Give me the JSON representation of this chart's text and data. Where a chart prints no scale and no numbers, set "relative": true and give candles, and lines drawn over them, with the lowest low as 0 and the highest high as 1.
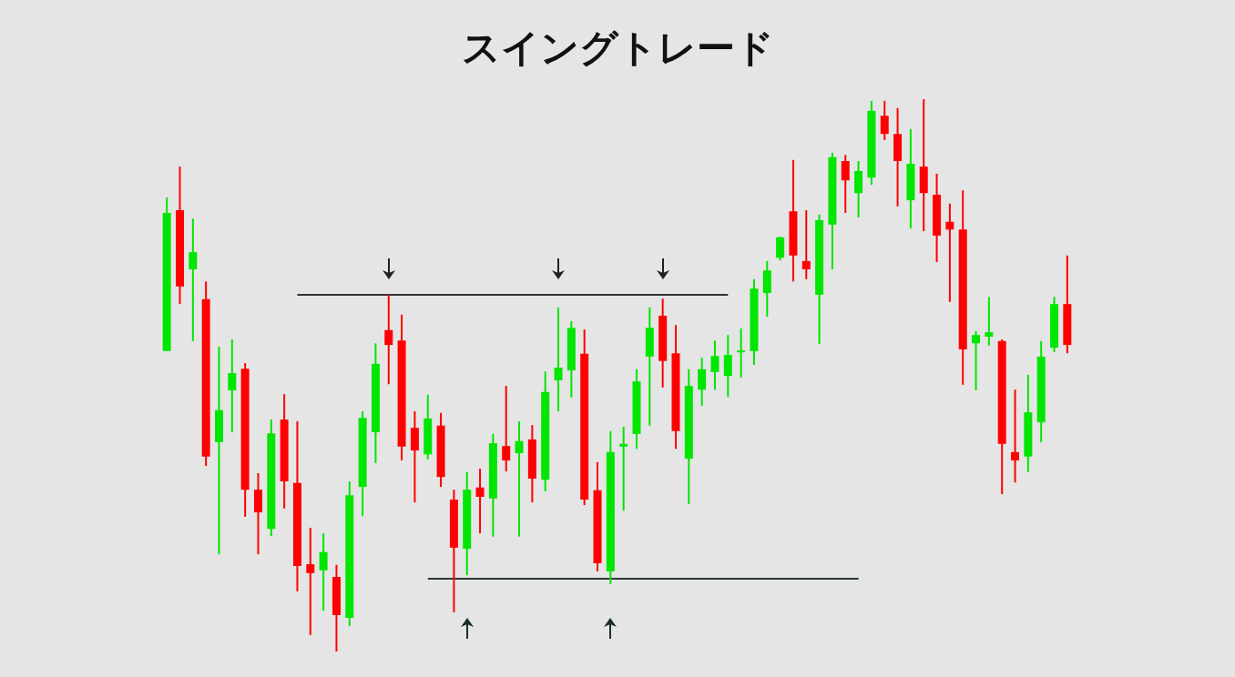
{
  "chart_data": {
    "type": "candlestick",
    "title": "スイングトレード",
    "relative": true,
    "categories": [
      null,
      null,
      null,
      null,
      null,
      null,
      null,
      null,
      null,
      null,
      null,
      null,
      null,
      null,
      null,
      null,
      null,
      null,
      null,
      null,
      null,
      null,
      null,
      null,
      null,
      null,
      null,
      null,
      null,
      null,
      null,
      null,
      null,
      null,
      null,
      null,
      null,
      null,
      null,
      null,
      null,
      null,
      null,
      null,
      null,
      null,
      null,
      null,
      null,
      null,
      null,
      null,
      null,
      null,
      null,
      null,
      null,
      null,
      null,
      null,
      null,
      null,
      null,
      null,
      null,
      null,
      null,
      null,
      null,
      null
    ],
    "ohlc": [
      [
        0.544,
        0.822,
        0.544,
        0.794
      ],
      [
        0.799,
        0.878,
        0.629,
        0.661
      ],
      [
        0.692,
        0.784,
        0.562,
        0.723
      ],
      [
        0.638,
        0.67,
        0.336,
        0.353
      ],
      [
        0.379,
        0.552,
        0.176,
        0.437
      ],
      [
        0.473,
        0.565,
        0.397,
        0.504
      ],
      [
        0.512,
        0.522,
        0.244,
        0.293
      ],
      [
        0.293,
        0.323,
        0.176,
        0.252
      ],
      [
        0.222,
        0.42,
        0.209,
        0.395
      ],
      [
        0.42,
        0.466,
        0.259,
        0.308
      ],
      [
        0.305,
        0.417,
        0.109,
        0.155
      ],
      [
        0.158,
        0.224,
        0.03,
        0.142
      ],
      [
        0.147,
        0.214,
        0.074,
        0.18
      ],
      [
        0.135,
        0.157,
        0,
        0.066
      ],
      [
        0.061,
        0.308,
        0.046,
        0.283
      ],
      [
        0.298,
        0.435,
        0.245,
        0.423
      ],
      [
        0.397,
        0.558,
        0.341,
        0.521
      ],
      [
        0.582,
        0.646,
        0.484,
        0.555
      ],
      [
        0.563,
        0.61,
        0.346,
        0.371
      ],
      [
        0.405,
        0.435,
        0.27,
        0.364
      ],
      [
        0.357,
        0.465,
        0.348,
        0.422
      ],
      [
        0.409,
        0.432,
        0.298,
        0.316
      ],
      [
        0.275,
        0.293,
        0.071,
        0.188
      ],
      [
        0.186,
        0.325,
        0.138,
        0.293
      ],
      [
        0.297,
        0.331,
        0.214,
        0.28
      ],
      [
        0.277,
        0.394,
        0.208,
        0.377
      ],
      [
        0.372,
        0.481,
        0.326,
        0.346
      ],
      [
        0.359,
        0.417,
        0.208,
        0.381
      ],
      [
        0.384,
        0.41,
        0.27,
        0.313
      ],
      [
        0.311,
        0.507,
        0.29,
        0.47
      ],
      [
        0.491,
        0.623,
        0.435,
        0.514
      ],
      [
        0.509,
        0.598,
        0.46,
        0.586
      ],
      [
        0.539,
        0.583,
        0.265,
        0.275
      ],
      [
        0.292,
        0.343,
        0.145,
        0.16
      ],
      [
        0.145,
        0.399,
        0.122,
        0.361
      ],
      [
        0.371,
        0.407,
        0.255,
        0.376
      ],
      [
        0.394,
        0.511,
        0.367,
        0.489
      ],
      [
        0.534,
        0.623,
        0.409,
        0.586
      ],
      [
        0.608,
        0.639,
        0.478,
        0.526
      ],
      [
        0.54,
        0.591,
        0.367,
        0.399
      ],
      [
        0.349,
        0.511,
        0.267,
        0.481
      ],
      [
        0.474,
        0.532,
        0.445,
        0.511
      ],
      [
        0.506,
        0.563,
        0.474,
        0.535
      ],
      [
        0.499,
        0.573,
        0.461,
        0.537
      ],
      [
        0.542,
        0.585,
        0.496,
        0.545
      ],
      [
        0.544,
        0.674,
        0.519,
        0.657
      ],
      [
        0.649,
        0.707,
        0.606,
        0.69
      ],
      [
        0.713,
        0.751,
        0.708,
        0.75
      ],
      [
        0.797,
        0.89,
        0.67,
        0.717
      ],
      [
        0.707,
        0.799,
        0.674,
        0.692
      ],
      [
        0.646,
        0.791,
        0.557,
        0.781
      ],
      [
        0.773,
        0.903,
        0.692,
        0.895
      ],
      [
        0.888,
        0.899,
        0.794,
        0.853
      ],
      [
        0.83,
        0.888,
        0.786,
        0.87
      ],
      [
        0.858,
        0.997,
        0.845,
        0.979
      ],
      [
        0.97,
        0.997,
        0.926,
        0.937
      ],
      [
        0.937,
        0.984,
        0.806,
        0.888
      ],
      [
        0.817,
        0.946,
        0.766,
        0.883
      ],
      [
        0.878,
        1,
        0.761,
        0.83
      ],
      [
        0.827,
        0.865,
        0.705,
        0.753
      ],
      [
        0.778,
        0.811,
        0.633,
        0.764
      ],
      [
        0.764,
        0.835,
        0.483,
        0.547
      ],
      [
        0.558,
        0.58,
        0.473,
        0.573
      ],
      [
        0.57,
        0.642,
        0.554,
        0.578
      ],
      [
        0.562,
        0.565,
        0.285,
        0.376
      ],
      [
        0.361,
        0.474,
        0.306,
        0.346
      ],
      [
        0.353,
        0.501,
        0.325,
        0.433
      ],
      [
        0.415,
        0.562,
        0.379,
        0.534
      ],
      [
        0.55,
        0.642,
        0.542,
        0.629
      ],
      [
        0.629,
        0.717,
        0.54,
        0.555
      ]
    ],
    "colors": [
      "#00e600",
      "#ff0000",
      "#00e600",
      "#ff0000",
      "#00e600",
      "#00e600",
      "#ff0000",
      "#ff0000",
      "#00e600",
      "#ff0000",
      "#ff0000",
      "#ff0000",
      "#00e600",
      "#ff0000",
      "#00e600",
      "#00e600",
      "#00e600",
      "#ff0000",
      "#ff0000",
      "#ff0000",
      "#00e600",
      "#ff0000",
      "#ff0000",
      "#00e600",
      "#ff0000",
      "#00e600",
      "#ff0000",
      "#00e600",
      "#ff0000",
      "#00e600",
      "#00e600",
      "#00e600",
      "#ff0000",
      "#ff0000",
      "#00e600",
      "#00e600",
      "#00e600",
      "#00e600",
      "#ff0000",
      "#ff0000",
      "#00e600",
      "#00e600",
      "#00e600",
      "#00e600",
      "#00e600",
      "#00e600",
      "#00e600",
      "#00e600",
      "#ff0000",
      "#ff0000",
      "#00e600",
      "#00e600",
      "#ff0000",
      "#00e600",
      "#00e600",
      "#ff0000",
      "#ff0000",
      "#00e600",
      "#ff0000",
      "#ff0000",
      "#ff0000",
      "#ff0000",
      "#00e600",
      "#00e600",
      "#ff0000",
      "#ff0000",
      "#00e600",
      "#00e600",
      "#00e600",
      "#ff0000"
    ],
    "series": [
      {
        "type": "line",
        "color": "#333333",
        "values": [
          null,
          null,
          null,
          null,
          null,
          null,
          null,
          null,
          null,
          null,
          0.646,
          0.646,
          0.646,
          0.646,
          0.646,
          0.646,
          0.646,
          0.646,
          0.646,
          0.646,
          0.646,
          0.646,
          0.646,
          0.646,
          0.646,
          0.646,
          0.646,
          0.646,
          0.646,
          0.646,
          0.646,
          0.646,
          0.646,
          0.646,
          0.646,
          0.646,
          0.646,
          0.646,
          0.646,
          0.646,
          0.646,
          0.646,
          0.646,
          0.646,
          null,
          null,
          null,
          null,
          null,
          null,
          null,
          null,
          null,
          null,
          null,
          null,
          null,
          null,
          null,
          null,
          null,
          null,
          null,
          null,
          null,
          null,
          null,
          null,
          null,
          null
        ]
      },
      {
        "type": "line",
        "color": "#283838",
        "values": [
          null,
          null,
          null,
          null,
          null,
          null,
          null,
          null,
          null,
          null,
          null,
          null,
          null,
          null,
          null,
          null,
          null,
          null,
          null,
          null,
          0.132,
          0.132,
          0.132,
          0.132,
          0.132,
          0.132,
          0.132,
          0.132,
          0.132,
          0.132,
          0.132,
          0.132,
          0.132,
          0.132,
          0.132,
          0.132,
          0.132,
          0.132,
          0.132,
          0.132,
          0.132,
          0.132,
          0.132,
          0.132,
          0.132,
          0.132,
          0.132,
          0.132,
          0.132,
          0.132,
          0.132,
          0.132,
          0.132,
          0.132,
          null,
          null,
          null,
          null,
          null,
          null,
          null,
          null,
          null,
          null,
          null,
          null,
          null,
          null,
          null,
          null
        ]
      }
    ]
  }
}
